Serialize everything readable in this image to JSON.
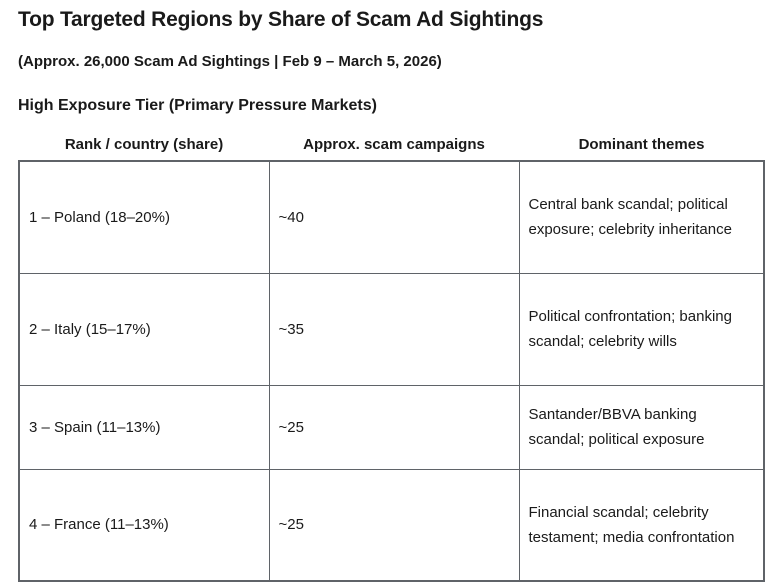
{
  "page": {
    "title": "Top Targeted Regions by Share of Scam Ad Sightings",
    "subtitle": "(Approx. 26,000 Scam Ad Sightings | Feb 9 – March 5, 2026)",
    "section_heading": "High Exposure Tier (Primary Pressure Markets)"
  },
  "table": {
    "columns": [
      "Rank / country (share)",
      "Approx. scam campaigns",
      "Dominant themes"
    ],
    "rows": [
      {
        "rank": "1 – Poland (18–20%)",
        "campaigns": "~40",
        "themes": "Central bank scandal; political exposure; celebrity inheritance"
      },
      {
        "rank": "2 – Italy (15–17%)",
        "campaigns": "~35",
        "themes": "Political confrontation; banking scandal; celebrity wills"
      },
      {
        "rank": "3 – Spain (11–13%)",
        "campaigns": "~25",
        "themes": "Santander/BBVA banking scandal; political exposure"
      },
      {
        "rank": "4 – France (11–13%)",
        "campaigns": "~25",
        "themes": "Financial scandal; celebrity testament; media confrontation"
      }
    ]
  },
  "colors": {
    "text": "#1a1a1a",
    "table_border": "#5f6368",
    "background": "#ffffff"
  }
}
